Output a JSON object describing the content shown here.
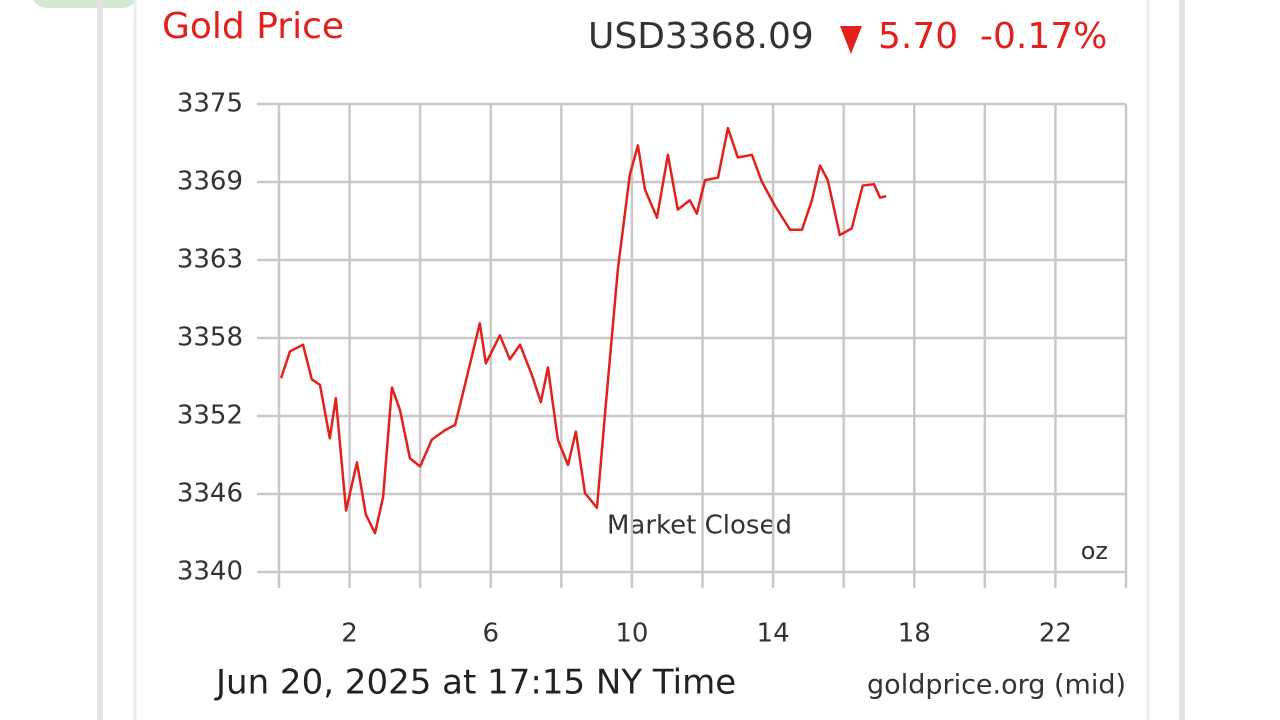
{
  "chart_data": {
    "type": "line",
    "title": "Gold Price",
    "price": "USD3368.09",
    "change": "5.70",
    "change_percent": "-0.17%",
    "annotation": "Market Closed",
    "unit": "oz",
    "timestamp": "Jun 20, 2025 at 17:15 NY Time",
    "source": "goldprice.org (mid)",
    "xlim": [
      0,
      24
    ],
    "xticks": [
      2,
      6,
      10,
      14,
      18,
      22
    ],
    "xgrid": [
      0,
      4,
      8,
      12,
      16,
      20,
      24
    ],
    "ylim": [
      3340,
      3375
    ],
    "yticks": [
      {
        "value": 3340,
        "label": "3340"
      },
      {
        "value": 3345.83,
        "label": "3346"
      },
      {
        "value": 3351.67,
        "label": "3352"
      },
      {
        "value": 3357.5,
        "label": "3358"
      },
      {
        "value": 3363.33,
        "label": "3363"
      },
      {
        "value": 3369.17,
        "label": "3369"
      },
      {
        "value": 3375,
        "label": "3375"
      }
    ],
    "grid": true,
    "x": [
      0.06,
      0.31,
      0.68,
      0.93,
      1.16,
      1.44,
      1.61,
      1.9,
      2.21,
      2.46,
      2.72,
      2.95,
      3.2,
      3.43,
      3.71,
      4.0,
      4.33,
      4.7,
      4.99,
      5.27,
      5.69,
      5.86,
      6.26,
      6.54,
      6.83,
      7.17,
      7.42,
      7.62,
      7.9,
      8.19,
      8.41,
      8.67,
      9.01,
      9.26,
      9.6,
      9.94,
      10.17,
      10.37,
      10.71,
      11.02,
      11.3,
      11.64,
      11.84,
      12.07,
      12.44,
      12.72,
      13.0,
      13.4,
      13.68,
      14.05,
      14.48,
      14.82,
      15.1,
      15.33,
      15.55,
      15.89,
      16.23,
      16.54,
      16.86,
      17.03,
      17.2
    ],
    "series": [
      {
        "color": "#e3211c",
        "values": [
          3354.5,
          3356.5,
          3357.0,
          3354.4,
          3354.0,
          3350.0,
          3353.0,
          3344.6,
          3348.2,
          3344.3,
          3342.9,
          3345.6,
          3353.8,
          3352.1,
          3348.5,
          3347.9,
          3349.9,
          3350.6,
          3351.0,
          3354.0,
          3358.6,
          3355.6,
          3357.7,
          3355.9,
          3357.0,
          3354.7,
          3352.7,
          3355.3,
          3349.9,
          3348.0,
          3350.5,
          3345.9,
          3344.8,
          3352.5,
          3362.6,
          3369.7,
          3371.9,
          3368.6,
          3366.5,
          3371.2,
          3367.1,
          3367.8,
          3366.8,
          3369.3,
          3369.5,
          3373.2,
          3371.0,
          3371.2,
          3369.2,
          3367.4,
          3365.6,
          3365.6,
          3367.8,
          3370.4,
          3369.3,
          3365.2,
          3365.7,
          3368.9,
          3369.0,
          3368.0,
          3368.1
        ]
      }
    ]
  }
}
